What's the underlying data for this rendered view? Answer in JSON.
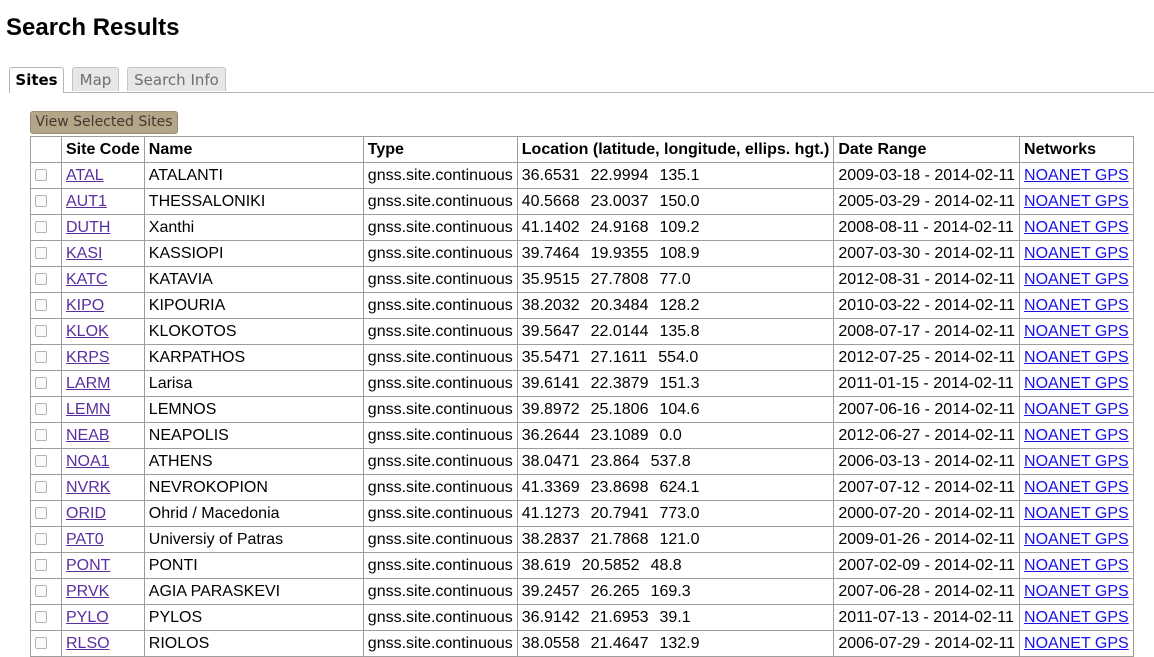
{
  "page": {
    "title": "Search Results"
  },
  "tabs": [
    {
      "label": "Sites",
      "active": true
    },
    {
      "label": "Map",
      "active": false
    },
    {
      "label": "Search Info",
      "active": false
    }
  ],
  "toolbar": {
    "view_selected_label": "View Selected Sites"
  },
  "table": {
    "columns": [
      "",
      "Site Code",
      "Name",
      "Type",
      "Location (latitude, longitude, ellips. hgt.)",
      "Date Range",
      "Networks"
    ],
    "rows": [
      {
        "code": "ATAL",
        "name": "ATALANTI",
        "type": "gnss.site.continuous",
        "lat": "36.6531",
        "lon": "22.9994",
        "hgt": "135.1",
        "range": "2009-03-18 - 2014-02-11",
        "network": "NOANET GPS"
      },
      {
        "code": "AUT1",
        "name": "THESSALONIKI",
        "type": "gnss.site.continuous",
        "lat": "40.5668",
        "lon": "23.0037",
        "hgt": "150.0",
        "range": "2005-03-29 - 2014-02-11",
        "network": "NOANET GPS"
      },
      {
        "code": "DUTH",
        "name": "Xanthi",
        "type": "gnss.site.continuous",
        "lat": "41.1402",
        "lon": "24.9168",
        "hgt": "109.2",
        "range": "2008-08-11 - 2014-02-11",
        "network": "NOANET GPS"
      },
      {
        "code": "KASI",
        "name": "KASSIOPI",
        "type": "gnss.site.continuous",
        "lat": "39.7464",
        "lon": "19.9355",
        "hgt": "108.9",
        "range": "2007-03-30 - 2014-02-11",
        "network": "NOANET GPS"
      },
      {
        "code": "KATC",
        "name": "KATAVIA",
        "type": "gnss.site.continuous",
        "lat": "35.9515",
        "lon": "27.7808",
        "hgt": "77.0",
        "range": "2012-08-31 - 2014-02-11",
        "network": "NOANET GPS"
      },
      {
        "code": "KIPO",
        "name": "KIPOURIA",
        "type": "gnss.site.continuous",
        "lat": "38.2032",
        "lon": "20.3484",
        "hgt": "128.2",
        "range": "2010-03-22 - 2014-02-11",
        "network": "NOANET GPS"
      },
      {
        "code": "KLOK",
        "name": "KLOKOTOS",
        "type": "gnss.site.continuous",
        "lat": "39.5647",
        "lon": "22.0144",
        "hgt": "135.8",
        "range": "2008-07-17 - 2014-02-11",
        "network": "NOANET GPS"
      },
      {
        "code": "KRPS",
        "name": "KARPATHOS",
        "type": "gnss.site.continuous",
        "lat": "35.5471",
        "lon": "27.1611",
        "hgt": "554.0",
        "range": "2012-07-25 - 2014-02-11",
        "network": "NOANET GPS"
      },
      {
        "code": "LARM",
        "name": "Larisa",
        "type": "gnss.site.continuous",
        "lat": "39.6141",
        "lon": "22.3879",
        "hgt": "151.3",
        "range": "2011-01-15 - 2014-02-11",
        "network": "NOANET GPS"
      },
      {
        "code": "LEMN",
        "name": "LEMNOS",
        "type": "gnss.site.continuous",
        "lat": "39.8972",
        "lon": "25.1806",
        "hgt": "104.6",
        "range": "2007-06-16 - 2014-02-11",
        "network": "NOANET GPS"
      },
      {
        "code": "NEAB",
        "name": "NEAPOLIS",
        "type": "gnss.site.continuous",
        "lat": "36.2644",
        "lon": "23.1089",
        "hgt": "0.0",
        "range": "2012-06-27 - 2014-02-11",
        "network": "NOANET GPS"
      },
      {
        "code": "NOA1",
        "name": "ATHENS",
        "type": "gnss.site.continuous",
        "lat": "38.0471",
        "lon": "23.864",
        "hgt": "537.8",
        "range": "2006-03-13 - 2014-02-11",
        "network": "NOANET GPS"
      },
      {
        "code": "NVRK",
        "name": "NEVROKOPION",
        "type": "gnss.site.continuous",
        "lat": "41.3369",
        "lon": "23.8698",
        "hgt": "624.1",
        "range": "2007-07-12 - 2014-02-11",
        "network": "NOANET GPS"
      },
      {
        "code": "ORID",
        "name": "Ohrid / Macedonia",
        "type": "gnss.site.continuous",
        "lat": "41.1273",
        "lon": "20.7941",
        "hgt": "773.0",
        "range": "2000-07-20 - 2014-02-11",
        "network": "NOANET GPS"
      },
      {
        "code": "PAT0",
        "name": "Universiy of Patras",
        "type": "gnss.site.continuous",
        "lat": "38.2837",
        "lon": "21.7868",
        "hgt": "121.0",
        "range": "2009-01-26 - 2014-02-11",
        "network": "NOANET GPS"
      },
      {
        "code": "PONT",
        "name": "PONTI",
        "type": "gnss.site.continuous",
        "lat": "38.619",
        "lon": "20.5852",
        "hgt": "48.8",
        "range": "2007-02-09 - 2014-02-11",
        "network": "NOANET GPS"
      },
      {
        "code": "PRVK",
        "name": "AGIA PARASKEVI",
        "type": "gnss.site.continuous",
        "lat": "39.2457",
        "lon": "26.265",
        "hgt": "169.3",
        "range": "2007-06-28 - 2014-02-11",
        "network": "NOANET GPS"
      },
      {
        "code": "PYLO",
        "name": "PYLOS",
        "type": "gnss.site.continuous",
        "lat": "36.9142",
        "lon": "21.6953",
        "hgt": "39.1",
        "range": "2011-07-13 - 2014-02-11",
        "network": "NOANET GPS"
      },
      {
        "code": "RLSO",
        "name": "RIOLOS",
        "type": "gnss.site.continuous",
        "lat": "38.0558",
        "lon": "21.4647",
        "hgt": "132.9",
        "range": "2006-07-29 - 2014-02-11",
        "network": "NOANET GPS"
      }
    ]
  },
  "colors": {
    "visited_link": "#5a2ea0",
    "link": "#1a10e8",
    "button_bg": "#b5a588"
  }
}
